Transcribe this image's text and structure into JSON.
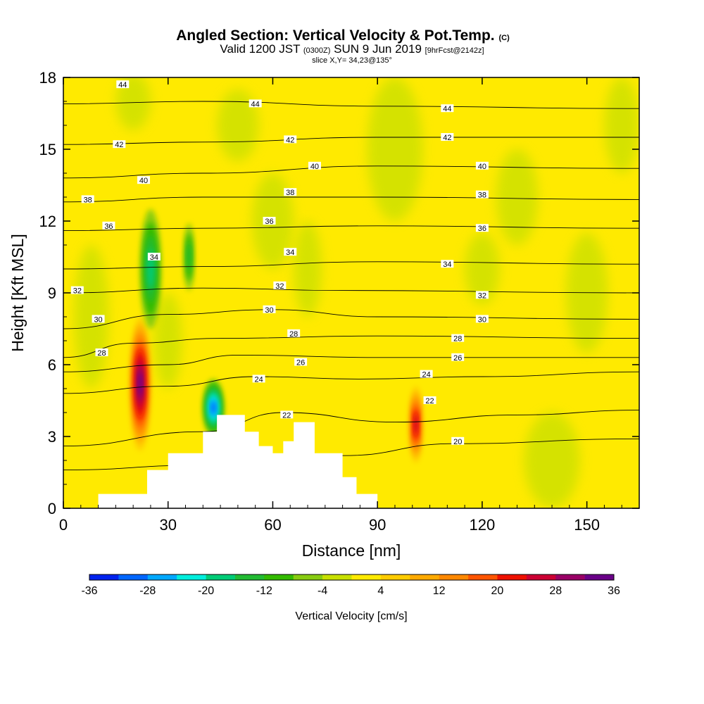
{
  "header": {
    "title": "Angled Section: Vertical Velocity & Pot.Temp.",
    "title_unit": "(C)",
    "sub_valid": "Valid 1200 JST",
    "sub_utc": "(0300Z)",
    "sub_date": "SUN 9 Jun 2019",
    "sub_fcst": "[9hrFcst@2142z]",
    "slice": "slice X,Y= 34,23@135°"
  },
  "chart_data": {
    "type": "heatmap",
    "xlabel": "Distance [nm]",
    "ylabel": "Height [Kft MSL]",
    "xlim": [
      0,
      165
    ],
    "ylim": [
      0,
      18
    ],
    "x_ticks": [
      "0",
      "30",
      "60",
      "90",
      "120",
      "150"
    ],
    "y_ticks": [
      "0",
      "3",
      "6",
      "9",
      "12",
      "15",
      "18"
    ],
    "background_color": "#ffea00",
    "colorbar": {
      "label": "Vertical Velocity [cm/s]",
      "tick_labels": [
        "-36",
        "-28",
        "-20",
        "-12",
        "-4",
        "4",
        "12",
        "20",
        "28",
        "36"
      ],
      "colors": [
        "#0022ee",
        "#0066ff",
        "#00a8ff",
        "#00eedd",
        "#00cc77",
        "#22bb33",
        "#33bb00",
        "#88cc11",
        "#c8e000",
        "#ffea00",
        "#ffcc00",
        "#ffaa00",
        "#ff8800",
        "#ff5500",
        "#ee1100",
        "#cc0033",
        "#990066",
        "#6a0088"
      ]
    },
    "terrain": [
      [
        0,
        0
      ],
      [
        10,
        0
      ],
      [
        10,
        0.6
      ],
      [
        24,
        0.6
      ],
      [
        24,
        1.6
      ],
      [
        30,
        1.6
      ],
      [
        30,
        2.3
      ],
      [
        40,
        2.3
      ],
      [
        40,
        3.2
      ],
      [
        44,
        3.2
      ],
      [
        44,
        3.9
      ],
      [
        52,
        3.9
      ],
      [
        52,
        3.2
      ],
      [
        56,
        3.2
      ],
      [
        56,
        2.6
      ],
      [
        60,
        2.6
      ],
      [
        60,
        2.3
      ],
      [
        63,
        2.3
      ],
      [
        63,
        2.8
      ],
      [
        66,
        2.8
      ],
      [
        66,
        3.6
      ],
      [
        72,
        3.6
      ],
      [
        72,
        2.3
      ],
      [
        80,
        2.3
      ],
      [
        80,
        1.3
      ],
      [
        84,
        1.3
      ],
      [
        84,
        0.6
      ],
      [
        90,
        0.6
      ],
      [
        90,
        0
      ],
      [
        165,
        0
      ]
    ],
    "regions": [
      {
        "name": "updraft-west",
        "value": 30,
        "center": [
          22,
          5.2
        ],
        "radius": [
          3,
          2.8
        ]
      },
      {
        "name": "updraft-east",
        "value": 22,
        "center": [
          101,
          3.5
        ],
        "radius": [
          2,
          1.6
        ]
      },
      {
        "name": "downdraft-lee",
        "value": -28,
        "center": [
          43,
          4.2
        ],
        "radius": [
          3,
          1.2
        ]
      },
      {
        "name": "downdraft-upper",
        "value": -16,
        "center": [
          25,
          10
        ],
        "radius": [
          3,
          2.5
        ]
      },
      {
        "name": "downdraft-mid",
        "value": -10,
        "center": [
          36,
          10.5
        ],
        "radius": [
          1.5,
          1.4
        ]
      }
    ],
    "contours": [
      {
        "label": "20",
        "points": [
          [
            0,
            1.6
          ],
          [
            40,
            1.8
          ],
          [
            80,
            2.2
          ],
          [
            112,
            2.7
          ],
          [
            165,
            2.9
          ]
        ],
        "labels_at": [
          [
            113,
            2.8
          ]
        ]
      },
      {
        "label": "22",
        "points": [
          [
            0,
            2.6
          ],
          [
            40,
            3.2
          ],
          [
            63,
            4.0
          ],
          [
            95,
            3.6
          ],
          [
            130,
            3.9
          ],
          [
            165,
            4.1
          ]
        ],
        "labels_at": [
          [
            64,
            3.9
          ],
          [
            105,
            4.5
          ]
        ]
      },
      {
        "label": "24",
        "points": [
          [
            0,
            4.8
          ],
          [
            30,
            5.1
          ],
          [
            55,
            5.5
          ],
          [
            85,
            5.4
          ],
          [
            120,
            5.5
          ],
          [
            165,
            5.7
          ]
        ],
        "labels_at": [
          [
            56,
            5.4
          ],
          [
            104,
            5.6
          ]
        ]
      },
      {
        "label": "26",
        "points": [
          [
            0,
            5.7
          ],
          [
            30,
            6.0
          ],
          [
            50,
            6.4
          ],
          [
            90,
            6.3
          ],
          [
            165,
            6.3
          ]
        ],
        "labels_at": [
          [
            68,
            6.1
          ],
          [
            113,
            6.3
          ]
        ]
      },
      {
        "label": "28",
        "points": [
          [
            0,
            6.3
          ],
          [
            20,
            6.9
          ],
          [
            45,
            7.1
          ],
          [
            90,
            7.2
          ],
          [
            165,
            7.1
          ]
        ],
        "labels_at": [
          [
            11,
            6.5
          ],
          [
            66,
            7.3
          ],
          [
            113,
            7.1
          ]
        ]
      },
      {
        "label": "30",
        "points": [
          [
            0,
            7.5
          ],
          [
            30,
            8.1
          ],
          [
            60,
            8.3
          ],
          [
            90,
            8.0
          ],
          [
            165,
            7.9
          ]
        ],
        "labels_at": [
          [
            10,
            7.9
          ],
          [
            59,
            8.3
          ],
          [
            120,
            7.9
          ]
        ]
      },
      {
        "label": "32",
        "points": [
          [
            0,
            9.0
          ],
          [
            40,
            9.2
          ],
          [
            80,
            9.1
          ],
          [
            165,
            9.0
          ]
        ],
        "labels_at": [
          [
            4,
            9.1
          ],
          [
            62,
            9.3
          ],
          [
            120,
            8.9
          ]
        ]
      },
      {
        "label": "34",
        "points": [
          [
            0,
            10.0
          ],
          [
            40,
            10.1
          ],
          [
            90,
            10.3
          ],
          [
            165,
            10.2
          ]
        ],
        "labels_at": [
          [
            26,
            10.5
          ],
          [
            65,
            10.7
          ],
          [
            110,
            10.2
          ]
        ]
      },
      {
        "label": "36",
        "points": [
          [
            0,
            11.6
          ],
          [
            40,
            11.7
          ],
          [
            90,
            11.8
          ],
          [
            165,
            11.7
          ]
        ],
        "labels_at": [
          [
            13,
            11.8
          ],
          [
            59,
            12.0
          ],
          [
            120,
            11.7
          ]
        ]
      },
      {
        "label": "38",
        "points": [
          [
            0,
            12.8
          ],
          [
            40,
            13.0
          ],
          [
            90,
            13.0
          ],
          [
            165,
            12.9
          ]
        ],
        "labels_at": [
          [
            7,
            12.9
          ],
          [
            65,
            13.2
          ],
          [
            120,
            13.1
          ]
        ]
      },
      {
        "label": "40",
        "points": [
          [
            0,
            13.8
          ],
          [
            40,
            14.0
          ],
          [
            90,
            14.3
          ],
          [
            165,
            14.2
          ]
        ],
        "labels_at": [
          [
            23,
            13.7
          ],
          [
            72,
            14.3
          ],
          [
            120,
            14.3
          ]
        ]
      },
      {
        "label": "42",
        "points": [
          [
            0,
            15.2
          ],
          [
            40,
            15.3
          ],
          [
            90,
            15.5
          ],
          [
            165,
            15.5
          ]
        ],
        "labels_at": [
          [
            16,
            15.2
          ],
          [
            65,
            15.4
          ],
          [
            110,
            15.5
          ]
        ]
      },
      {
        "label": "44",
        "points": [
          [
            0,
            16.9
          ],
          [
            40,
            17.0
          ],
          [
            90,
            16.8
          ],
          [
            165,
            16.7
          ]
        ],
        "labels_at": [
          [
            17,
            17.7
          ],
          [
            55,
            16.9
          ],
          [
            110,
            16.7
          ]
        ]
      }
    ]
  }
}
